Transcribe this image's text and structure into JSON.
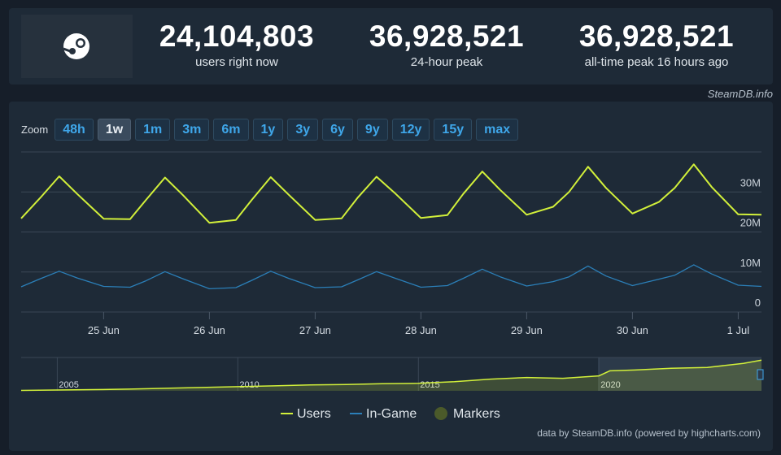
{
  "stats": [
    {
      "value": "24,104,803",
      "label": "users right now"
    },
    {
      "value": "36,928,521",
      "label": "24-hour peak"
    },
    {
      "value": "36,928,521",
      "label": "all-time peak 16 hours ago"
    }
  ],
  "source": "SteamDB.info",
  "zoom": {
    "label": "Zoom",
    "buttons": [
      "48h",
      "1w",
      "1m",
      "3m",
      "6m",
      "1y",
      "3y",
      "6y",
      "9y",
      "12y",
      "15y",
      "max"
    ],
    "active": "1w"
  },
  "chart_data": {
    "type": "line",
    "x": [
      24.22,
      24.4,
      24.58,
      24.75,
      25.0,
      25.25,
      25.4,
      25.58,
      25.75,
      26.0,
      26.25,
      26.4,
      26.58,
      26.75,
      27.0,
      27.25,
      27.4,
      27.58,
      27.75,
      28.0,
      28.25,
      28.4,
      28.58,
      28.75,
      29.0,
      29.25,
      29.4,
      29.58,
      29.75,
      30.0,
      30.25,
      30.4,
      30.58,
      30.75,
      31.0,
      31.22
    ],
    "series": [
      {
        "name": "Users",
        "color": "#d2f03a",
        "values": [
          23400000,
          28500000,
          33900000,
          29500000,
          23300000,
          23200000,
          28000000,
          33600000,
          29200000,
          22300000,
          23000000,
          28000000,
          33700000,
          29300000,
          23000000,
          23400000,
          28500000,
          33800000,
          29800000,
          23500000,
          24200000,
          29500000,
          35100000,
          30500000,
          24300000,
          26300000,
          30000000,
          36300000,
          31000000,
          24600000,
          27500000,
          31000000,
          36900000,
          31200000,
          24400000,
          24300000
        ]
      },
      {
        "name": "In-Game",
        "color": "#2b7fb8",
        "values": [
          6300000,
          8300000,
          10200000,
          8500000,
          6400000,
          6200000,
          7800000,
          10100000,
          8300000,
          5800000,
          6100000,
          7900000,
          10200000,
          8400000,
          6100000,
          6300000,
          8000000,
          10100000,
          8500000,
          6200000,
          6600000,
          8400000,
          10700000,
          8800000,
          6500000,
          7600000,
          8800000,
          11500000,
          9000000,
          6600000,
          8200000,
          9200000,
          11800000,
          9500000,
          6700000,
          6400000
        ]
      }
    ],
    "markers": {
      "name": "Markers",
      "color": "#4b5a2a"
    },
    "xlim": [
      24.22,
      31.22
    ],
    "xticks": [
      {
        "value": 25,
        "label": "25 Jun"
      },
      {
        "value": 26,
        "label": "26 Jun"
      },
      {
        "value": 27,
        "label": "27 Jun"
      },
      {
        "value": 28,
        "label": "28 Jun"
      },
      {
        "value": 29,
        "label": "29 Jun"
      },
      {
        "value": 30,
        "label": "30 Jun"
      },
      {
        "value": 31,
        "label": "1 Jul"
      }
    ],
    "ylim": [
      0,
      40000000
    ],
    "yticks": [
      0,
      {
        "value": 10000000,
        "label": "10M"
      },
      {
        "value": 20000000,
        "label": "20M"
      },
      {
        "value": 30000000,
        "label": "30M"
      }
    ],
    "grid": true,
    "navigator": {
      "x": [
        2004.0,
        2005,
        2006,
        2007,
        2008,
        2009,
        2010,
        2011,
        2012,
        2013,
        2014,
        2015,
        2016,
        2017,
        2018,
        2019,
        2020,
        2020.3,
        2021,
        2022,
        2023,
        2024,
        2024.5
      ],
      "values": [
        500000,
        1000000,
        1500000,
        2000000,
        3000000,
        4000000,
        5000000,
        6000000,
        7000000,
        7500000,
        8500000,
        9000000,
        11000000,
        14000000,
        16000000,
        15000000,
        18000000,
        24000000,
        25000000,
        27000000,
        28000000,
        33000000,
        36900000
      ],
      "color": "#d2f03a",
      "xlim": [
        2004.0,
        2024.5
      ],
      "ylim": [
        0,
        40000000
      ],
      "xticks": [
        2005,
        2010,
        2015,
        2020
      ]
    },
    "credits": "data by SteamDB.info (powered by highcharts.com)"
  }
}
